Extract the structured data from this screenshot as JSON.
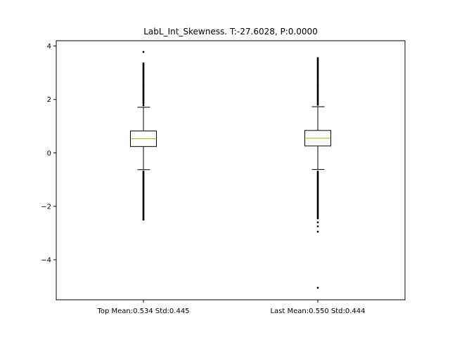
{
  "chart_data": {
    "type": "boxplot",
    "title": "LabL_Int_Skewness. T:-27.6028, P:0.0000",
    "xlabel": "",
    "ylabel": "",
    "ylim": [
      -5.5,
      4.2
    ],
    "yticks": [
      -4,
      -2,
      0,
      2,
      4
    ],
    "ytick_labels": [
      "−4",
      "−2",
      "0",
      "2",
      "4"
    ],
    "grid": false,
    "mean_line_color": "#9acd32",
    "median_line_color": "#ff8c00",
    "outlier_color": "#000000",
    "series": [
      {
        "category": "Top Mean:0.534 Std:0.445",
        "whisker_low": -0.63,
        "q1": 0.24,
        "median": 0.53,
        "mean": 0.534,
        "q3": 0.82,
        "whisker_high": 1.71,
        "outliers": [
          -2.5,
          -2.45,
          -2.4,
          -2.35,
          -2.3,
          -2.25,
          -2.2,
          -2.15,
          -2.1,
          -2.05,
          -2.0,
          -1.95,
          -1.9,
          -1.85,
          -1.8,
          -1.75,
          -1.7,
          -1.65,
          -1.6,
          -1.55,
          -1.5,
          -1.45,
          -1.4,
          -1.35,
          -1.3,
          -1.25,
          -1.2,
          -1.15,
          -1.1,
          -1.05,
          -1.0,
          -0.95,
          -0.9,
          -0.85,
          -0.8,
          -0.75,
          -0.7,
          1.78,
          1.85,
          1.9,
          1.95,
          2.0,
          2.05,
          2.1,
          2.15,
          2.2,
          2.25,
          2.3,
          2.35,
          2.4,
          2.45,
          2.5,
          2.55,
          2.6,
          2.65,
          2.7,
          2.75,
          2.8,
          2.85,
          2.9,
          2.95,
          3.0,
          3.05,
          3.1,
          3.15,
          3.2,
          3.25,
          3.3,
          3.35,
          3.78
        ]
      },
      {
        "category": "Last Mean:0.550 Std:0.444",
        "whisker_low": -0.62,
        "q1": 0.26,
        "median": 0.55,
        "mean": 0.55,
        "q3": 0.84,
        "whisker_high": 1.73,
        "outliers": [
          -5.05,
          -2.95,
          -2.75,
          -2.6,
          -2.45,
          -2.4,
          -2.35,
          -2.3,
          -2.25,
          -2.2,
          -2.15,
          -2.1,
          -2.05,
          -2.0,
          -1.95,
          -1.9,
          -1.85,
          -1.8,
          -1.75,
          -1.7,
          -1.65,
          -1.6,
          -1.55,
          -1.5,
          -1.45,
          -1.4,
          -1.35,
          -1.3,
          -1.25,
          -1.2,
          -1.15,
          -1.1,
          -1.05,
          -1.0,
          -0.95,
          -0.9,
          -0.85,
          -0.8,
          -0.75,
          -0.7,
          1.8,
          1.85,
          1.9,
          1.95,
          2.0,
          2.05,
          2.1,
          2.15,
          2.2,
          2.25,
          2.3,
          2.35,
          2.4,
          2.45,
          2.5,
          2.55,
          2.6,
          2.65,
          2.7,
          2.75,
          2.8,
          2.85,
          2.9,
          2.95,
          3.0,
          3.05,
          3.1,
          3.15,
          3.2,
          3.25,
          3.3,
          3.35,
          3.4,
          3.45,
          3.5,
          3.55
        ]
      }
    ]
  }
}
